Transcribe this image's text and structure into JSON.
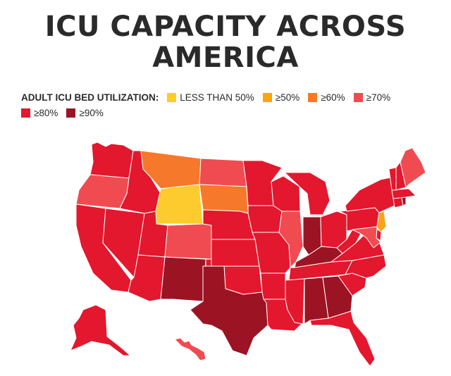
{
  "title_line1": "ICU CAPACITY ACROSS",
  "title_line2": "AMERICA",
  "legend": {
    "label": "ADULT ICU BED UTILIZATION:",
    "items": [
      {
        "key": "lt50",
        "text": "LESS THAN 50%",
        "color": "#fdcb2e"
      },
      {
        "key": "ge50",
        "text": "≥50%",
        "color": "#f9a21b"
      },
      {
        "key": "ge60",
        "text": "≥60%",
        "color": "#f6782a"
      },
      {
        "key": "ge70",
        "text": "≥70%",
        "color": "#f04b51"
      },
      {
        "key": "ge80",
        "text": "≥80%",
        "color": "#e3172d"
      },
      {
        "key": "ge90",
        "text": "≥90%",
        "color": "#9c1424"
      }
    ]
  },
  "states": {
    "WA": "ge80",
    "OR": "ge70",
    "CA": "ge80",
    "NV": "ge80",
    "ID": "ge80",
    "MT": "ge60",
    "WY": "lt50",
    "UT": "ge80",
    "AZ": "ge80",
    "CO": "ge70",
    "NM": "ge90",
    "ND": "ge70",
    "SD": "ge60",
    "NE": "ge80",
    "KS": "ge80",
    "OK": "ge80",
    "TX": "ge90",
    "MN": "ge80",
    "IA": "ge80",
    "MO": "ge80",
    "AR": "ge80",
    "LA": "ge80",
    "WI": "ge80",
    "IL": "ge70",
    "MI": "ge80",
    "IN": "ge90",
    "OH": "ge80",
    "KY": "ge90",
    "TN": "ge80",
    "MS": "ge80",
    "AL": "ge90",
    "GA": "ge90",
    "FL": "ge80",
    "SC": "ge80",
    "NC": "ge80",
    "VA": "ge80",
    "WV": "ge80",
    "PA": "ge80",
    "NY": "ge80",
    "VT": "ge80",
    "NH": "ge80",
    "ME": "ge70",
    "MA": "ge80",
    "RI": "ge90",
    "CT": "ge80",
    "NJ": "ge50",
    "DE": "ge80",
    "MD": "ge70",
    "AK": "ge80",
    "HI": "ge70"
  }
}
